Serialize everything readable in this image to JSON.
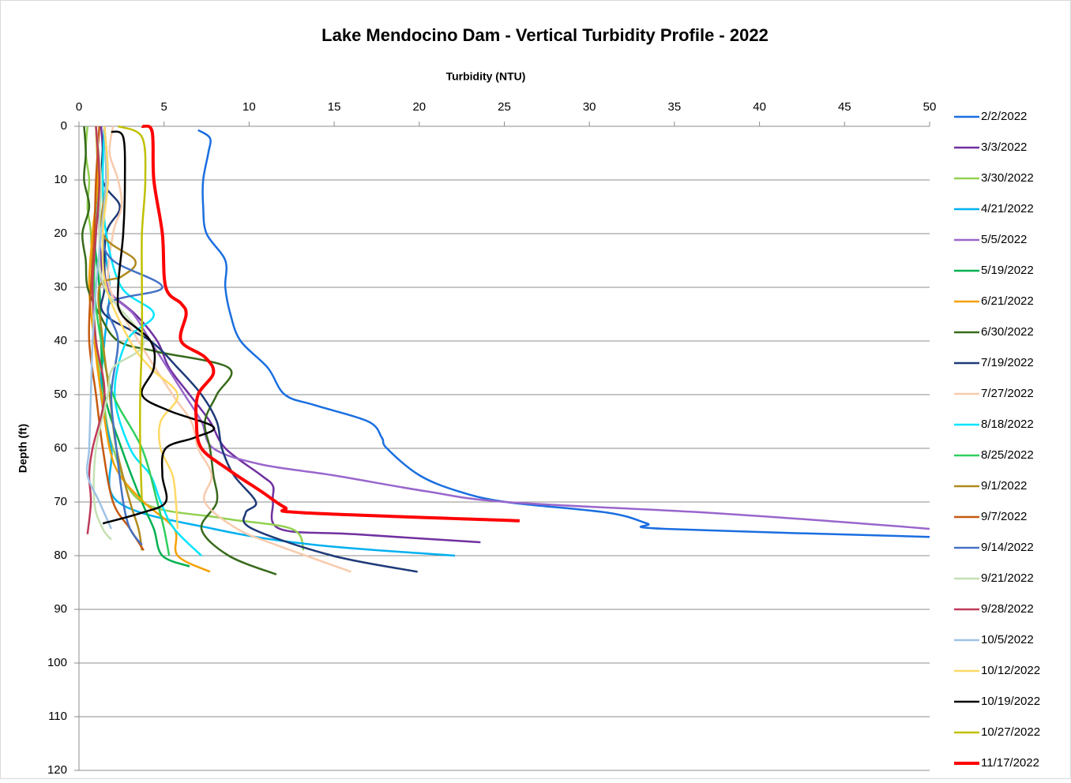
{
  "chart_data": {
    "type": "line",
    "title": "Lake Mendocino Dam - Vertical Turbidity Profile - 2022",
    "x_label": "Turbidity (NTU)",
    "y_label": "Depth (ft)",
    "xlim": [
      0,
      50
    ],
    "xticks": [
      0,
      5,
      10,
      15,
      20,
      25,
      30,
      35,
      40,
      45,
      50
    ],
    "ylim": [
      0,
      120
    ],
    "yticks": [
      0,
      10,
      20,
      30,
      40,
      50,
      60,
      70,
      80,
      90,
      100,
      110,
      120
    ],
    "y_inverted": true,
    "grid": true,
    "legend": "right",
    "series": [
      {
        "name": "2/2/2022",
        "color": "#1a6ee0",
        "y": [
          0.7,
          2.2,
          5,
          10,
          15,
          20,
          25,
          30,
          35,
          40,
          45,
          50,
          52,
          55,
          58,
          60,
          65,
          68,
          70,
          72,
          74,
          75,
          76.5
        ],
        "x": [
          7.0,
          7.7,
          7.6,
          7.3,
          7.3,
          7.5,
          8.6,
          8.6,
          8.9,
          9.5,
          11.1,
          12.1,
          13.9,
          17,
          17.8,
          18.1,
          20,
          22.3,
          25.1,
          31.1,
          33.4,
          34.4,
          50
        ]
      },
      {
        "name": "3/3/2022",
        "color": "#7030a0",
        "y": [
          0,
          5,
          10,
          15,
          20,
          25,
          30,
          35,
          40,
          45,
          50,
          55,
          60,
          65,
          67,
          70,
          75,
          76,
          77.5
        ],
        "x": [
          1.3,
          1.4,
          1.3,
          1.2,
          1.2,
          1.3,
          1.5,
          3.3,
          4.6,
          5.3,
          6.5,
          7.7,
          8.6,
          10.7,
          11.4,
          11.4,
          11.8,
          16.2,
          23.6
        ]
      },
      {
        "name": "3/30/2022",
        "color": "#92d050",
        "y": [
          0,
          5,
          10,
          15,
          20,
          30,
          40,
          50,
          60,
          70,
          73,
          75,
          79
        ],
        "x": [
          0.5,
          0.4,
          0.6,
          0.5,
          0.7,
          0.8,
          1,
          1.4,
          2,
          3.7,
          8.4,
          12.5,
          13.2
        ]
      },
      {
        "name": "4/21/2022",
        "color": "#00b0f0",
        "y": [
          0,
          10,
          20,
          30,
          40,
          50,
          60,
          70,
          75,
          78,
          80
        ],
        "x": [
          1.5,
          1.6,
          1.4,
          1.8,
          1.5,
          1.3,
          1.9,
          2.3,
          7.9,
          13.9,
          22.1
        ]
      },
      {
        "name": "5/5/2022",
        "color": "#9966cc",
        "y": [
          0,
          10,
          20,
          30,
          35,
          40,
          45,
          50,
          55,
          60,
          63,
          65,
          68,
          70,
          72,
          74,
          75
        ],
        "x": [
          1.5,
          1.6,
          1.4,
          1.7,
          3.2,
          4.2,
          5.2,
          6.2,
          7.2,
          7.9,
          10.7,
          14.9,
          20.4,
          25.1,
          37,
          46,
          50
        ]
      },
      {
        "name": "5/19/2022",
        "color": "#00b050",
        "y": [
          0,
          10,
          20,
          30,
          40,
          50,
          60,
          70,
          75,
          80,
          82
        ],
        "x": [
          1.0,
          1.1,
          0.9,
          1.2,
          1.3,
          1.5,
          2.5,
          3.7,
          4.4,
          4.9,
          6.5
        ]
      },
      {
        "name": "6/21/2022",
        "color": "#f5a000",
        "y": [
          0,
          10,
          20,
          30,
          40,
          50,
          60,
          65,
          70,
          75,
          80,
          83
        ],
        "x": [
          1,
          1.1,
          0.8,
          0.6,
          0.9,
          1.3,
          1.8,
          2.4,
          3.8,
          5.6,
          5.8,
          7.7
        ]
      },
      {
        "name": "6/30/2022",
        "color": "#376a1b",
        "y": [
          0,
          5,
          10,
          15,
          20,
          25,
          30,
          35,
          40,
          42,
          45,
          50,
          55,
          60,
          65,
          70,
          75,
          80,
          83.5
        ],
        "x": [
          0.3,
          0.4,
          0.3,
          0.6,
          0.2,
          0.4,
          0.5,
          1.2,
          2.3,
          4.6,
          8.8,
          8.1,
          7.4,
          7.7,
          7.9,
          8.1,
          7.2,
          8.8,
          11.6
        ]
      },
      {
        "name": "7/19/2022",
        "color": "#1f3a78",
        "y": [
          0,
          10,
          15,
          20,
          30,
          35,
          40,
          45,
          50,
          55,
          60,
          65,
          70,
          72,
          75,
          80,
          83
        ],
        "x": [
          1.5,
          1.4,
          2.4,
          1.6,
          1.5,
          1.5,
          4.2,
          5.8,
          7.2,
          8.1,
          8.4,
          9.1,
          10.4,
          9.8,
          10.2,
          14.9,
          19.9
        ]
      },
      {
        "name": "7/27/2022",
        "color": "#f8cbad",
        "y": [
          0,
          5,
          10,
          15,
          20,
          30,
          40,
          50,
          55,
          60,
          65,
          70,
          75,
          78,
          83
        ],
        "x": [
          2,
          1.8,
          2.3,
          2.5,
          2,
          1.8,
          3.5,
          5.5,
          6.6,
          7,
          7.8,
          7.4,
          9.3,
          11.6,
          16
        ]
      },
      {
        "name": "8/18/2022",
        "color": "#00e5ff",
        "y": [
          0,
          10,
          20,
          30,
          35,
          40,
          50,
          60,
          65,
          70,
          75,
          80
        ],
        "x": [
          1.5,
          1.4,
          1.6,
          2.5,
          4.4,
          2.8,
          2.1,
          3,
          4.2,
          4.8,
          5.6,
          7.2
        ]
      },
      {
        "name": "8/25/2022",
        "color": "#2fcf5f",
        "y": [
          0,
          10,
          20,
          30,
          40,
          50,
          60,
          70,
          75,
          80
        ],
        "x": [
          1,
          1.2,
          1,
          0.9,
          1.3,
          2,
          3.7,
          4.6,
          5,
          5.3
        ]
      },
      {
        "name": "9/1/2022",
        "color": "#b08a1e",
        "y": [
          0,
          10,
          20,
          25,
          28,
          30,
          40,
          50,
          60,
          70,
          75,
          79
        ],
        "x": [
          1.5,
          1.6,
          1.4,
          3.3,
          2.5,
          1.2,
          1.4,
          1.8,
          2.2,
          3,
          3.5,
          3.7
        ]
      },
      {
        "name": "9/7/2022",
        "color": "#c55a11",
        "y": [
          0,
          10,
          20,
          30,
          40,
          50,
          60,
          70,
          75,
          79
        ],
        "x": [
          1.2,
          1,
          0.9,
          0.7,
          0.6,
          1,
          1.4,
          2,
          3,
          3.8
        ]
      },
      {
        "name": "9/14/2022",
        "color": "#4472c4",
        "y": [
          0,
          10,
          20,
          25,
          30,
          33,
          40,
          50,
          60,
          70,
          75,
          78
        ],
        "x": [
          1.5,
          1.7,
          1.4,
          2,
          4.9,
          1.8,
          2.3,
          1.9,
          2.2,
          2.6,
          3,
          3.7
        ]
      },
      {
        "name": "9/21/2022",
        "color": "#c5e0b3",
        "y": [
          0,
          10,
          20,
          30,
          40,
          45,
          50,
          60,
          70,
          75,
          77
        ],
        "x": [
          1,
          1.3,
          1.2,
          1.5,
          3.8,
          2,
          1.7,
          1,
          0.9,
          1.4,
          1.9
        ]
      },
      {
        "name": "9/28/2022",
        "color": "#be3a5a",
        "y": [
          0,
          10,
          20,
          30,
          40,
          50,
          60,
          65,
          70,
          76
        ],
        "x": [
          1,
          1.2,
          1,
          0.8,
          1,
          1.5,
          0.8,
          0.6,
          0.7,
          0.5
        ]
      },
      {
        "name": "10/5/2022",
        "color": "#9dc3e6",
        "y": [
          0,
          10,
          20,
          30,
          40,
          50,
          60,
          65,
          70,
          75
        ],
        "x": [
          1.5,
          1.6,
          1.3,
          1,
          0.8,
          0.7,
          0.6,
          0.5,
          1.2,
          1.9
        ]
      },
      {
        "name": "10/12/2022",
        "color": "#ffd966",
        "y": [
          0,
          10,
          20,
          30,
          40,
          45,
          50,
          55,
          60,
          65,
          70,
          75
        ],
        "x": [
          1.5,
          1.7,
          1.4,
          1.6,
          3,
          4.2,
          5.8,
          4.8,
          4.8,
          5.5,
          5.7,
          5.8
        ]
      },
      {
        "name": "10/19/2022",
        "color": "#000000",
        "y": [
          1,
          2,
          10,
          20,
          30,
          35,
          40,
          45,
          50,
          53,
          56,
          58,
          60,
          65,
          70,
          72,
          74
        ],
        "x": [
          1.9,
          2.6,
          2.7,
          2.6,
          2.3,
          2.5,
          4.2,
          4.4,
          3.7,
          5.3,
          7.9,
          6.8,
          5.1,
          4.9,
          5.1,
          3.7,
          1.4
        ]
      },
      {
        "name": "10/27/2022",
        "color": "#c0c000",
        "y": [
          0,
          2,
          10,
          20,
          30,
          40,
          50,
          60,
          70
        ],
        "x": [
          2.3,
          3.7,
          3.9,
          3.7,
          3.7,
          3.7,
          3.6,
          3.6,
          3.7
        ]
      },
      {
        "name": "11/17/2022",
        "color": "#ff0000",
        "width": 4,
        "y": [
          0,
          1,
          10,
          20,
          30,
          33,
          35,
          40,
          43,
          46,
          50,
          55,
          60,
          64,
          68,
          71,
          72,
          73.5
        ],
        "x": [
          3.7,
          4.3,
          4.4,
          4.9,
          5.1,
          6,
          6.3,
          6,
          7.4,
          7.9,
          7,
          6.9,
          7.2,
          8.8,
          10.7,
          12.1,
          13.2,
          25.9
        ]
      }
    ]
  }
}
